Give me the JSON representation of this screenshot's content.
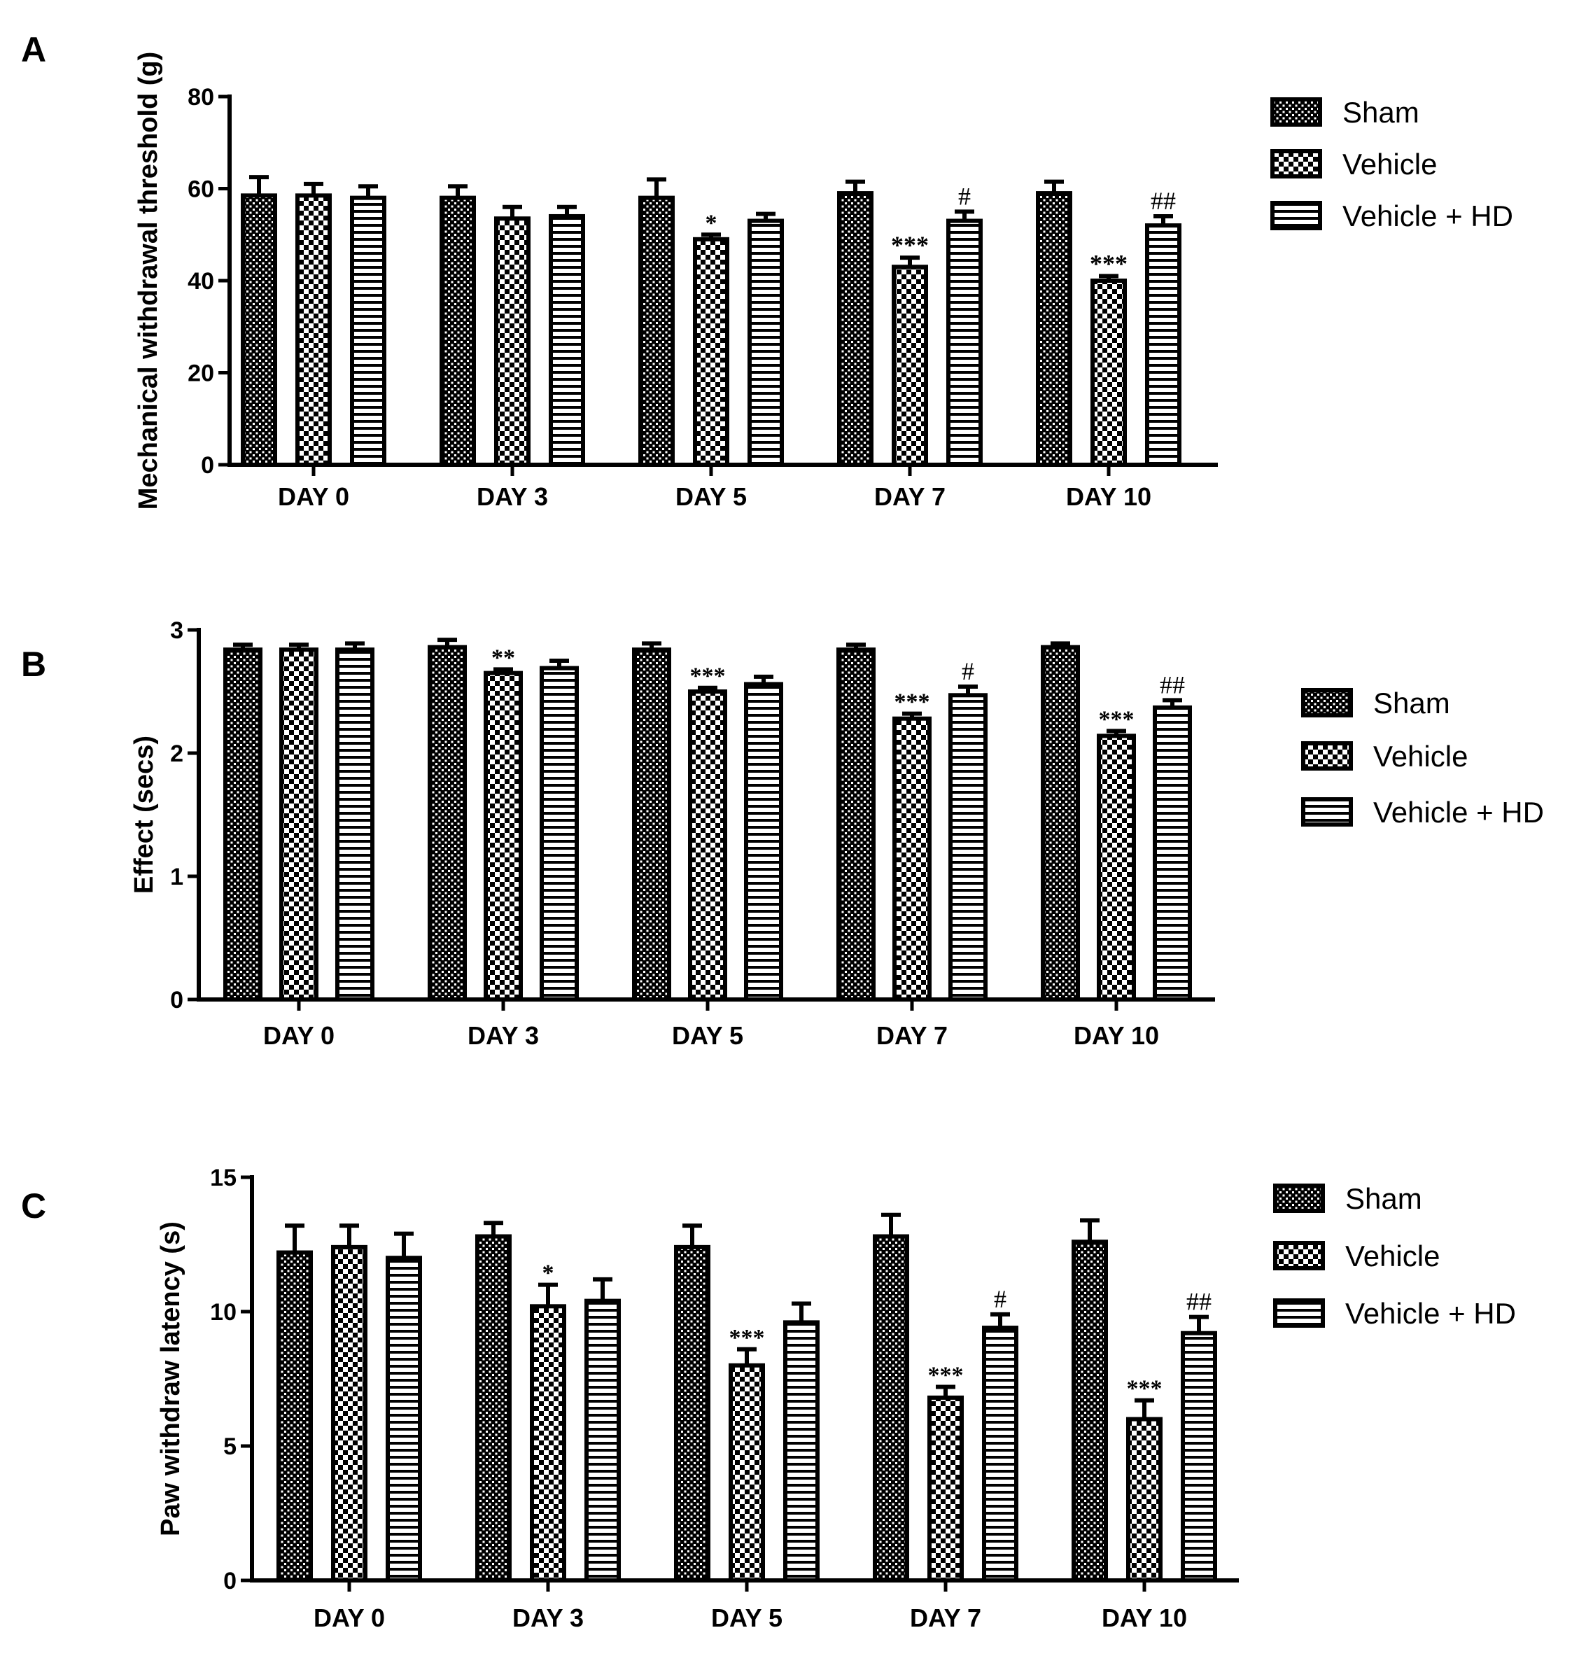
{
  "chart_data": [
    {
      "panel": "A",
      "type": "bar",
      "ylabel": "Mechanical withdrawal threshold (g)",
      "xlabel": "",
      "ylim": [
        0,
        80
      ],
      "yticks": [
        0,
        20,
        40,
        60,
        80
      ],
      "categories": [
        "DAY 0",
        "DAY 3",
        "DAY 5",
        "DAY 7",
        "DAY 10"
      ],
      "series": [
        {
          "name": "Sham",
          "pattern": "dots",
          "values": [
            58.5,
            58,
            58,
            59,
            59
          ],
          "errors": [
            4,
            2.5,
            4,
            2.5,
            2.5
          ],
          "annotations": [
            "",
            "",
            "",
            "",
            ""
          ]
        },
        {
          "name": "Vehicle",
          "pattern": "checker",
          "values": [
            58.5,
            53.5,
            49,
            43,
            40
          ],
          "errors": [
            2.5,
            2.5,
            1,
            2,
            1
          ],
          "annotations": [
            "",
            "",
            "*",
            "***",
            "***"
          ]
        },
        {
          "name": "Vehicle + HD",
          "pattern": "stripes",
          "values": [
            58,
            54,
            53,
            53,
            52
          ],
          "errors": [
            2.5,
            2,
            1.5,
            2,
            2
          ],
          "annotations": [
            "",
            "",
            "",
            "#",
            "##"
          ]
        }
      ],
      "legend": "right"
    },
    {
      "panel": "B",
      "type": "bar",
      "ylabel": "Effect (secs)",
      "xlabel": "",
      "ylim": [
        0,
        3
      ],
      "yticks": [
        0,
        1,
        2,
        3
      ],
      "categories": [
        "DAY 0",
        "DAY 3",
        "DAY 5",
        "DAY 7",
        "DAY 10"
      ],
      "series": [
        {
          "name": "Sham",
          "pattern": "dots",
          "values": [
            2.84,
            2.86,
            2.84,
            2.84,
            2.86
          ],
          "errors": [
            0.04,
            0.06,
            0.05,
            0.04,
            0.03
          ],
          "annotations": [
            "",
            "",
            "",
            "",
            ""
          ]
        },
        {
          "name": "Vehicle",
          "pattern": "checker",
          "values": [
            2.84,
            2.65,
            2.5,
            2.28,
            2.14
          ],
          "errors": [
            0.04,
            0.03,
            0.03,
            0.04,
            0.04
          ],
          "annotations": [
            "",
            "**",
            "***",
            "***",
            "***"
          ]
        },
        {
          "name": "Vehicle + HD",
          "pattern": "stripes",
          "values": [
            2.84,
            2.69,
            2.56,
            2.47,
            2.37
          ],
          "errors": [
            0.05,
            0.06,
            0.06,
            0.07,
            0.06
          ],
          "annotations": [
            "",
            "",
            "",
            "#",
            "##"
          ]
        }
      ],
      "legend": "right"
    },
    {
      "panel": "C",
      "type": "bar",
      "ylabel": "Paw withdraw latency (s)",
      "xlabel": "",
      "ylim": [
        0,
        15
      ],
      "yticks": [
        0,
        5,
        10,
        15
      ],
      "categories": [
        "DAY 0",
        "DAY 3",
        "DAY 5",
        "DAY 7",
        "DAY 10"
      ],
      "series": [
        {
          "name": "Sham",
          "pattern": "dots",
          "values": [
            12.2,
            12.8,
            12.4,
            12.8,
            12.6
          ],
          "errors": [
            1,
            0.5,
            0.8,
            0.8,
            0.8
          ],
          "annotations": [
            "",
            "",
            "",
            "",
            ""
          ]
        },
        {
          "name": "Vehicle",
          "pattern": "checker",
          "values": [
            12.4,
            10.2,
            8,
            6.8,
            6
          ],
          "errors": [
            0.8,
            0.8,
            0.6,
            0.4,
            0.7
          ],
          "annotations": [
            "",
            "*",
            "***",
            "***",
            "***"
          ]
        },
        {
          "name": "Vehicle + HD",
          "pattern": "stripes",
          "values": [
            12,
            10.4,
            9.6,
            9.4,
            9.2
          ],
          "errors": [
            0.9,
            0.8,
            0.7,
            0.5,
            0.6
          ],
          "annotations": [
            "",
            "",
            "",
            "#",
            "##"
          ]
        }
      ],
      "legend": "right"
    }
  ]
}
